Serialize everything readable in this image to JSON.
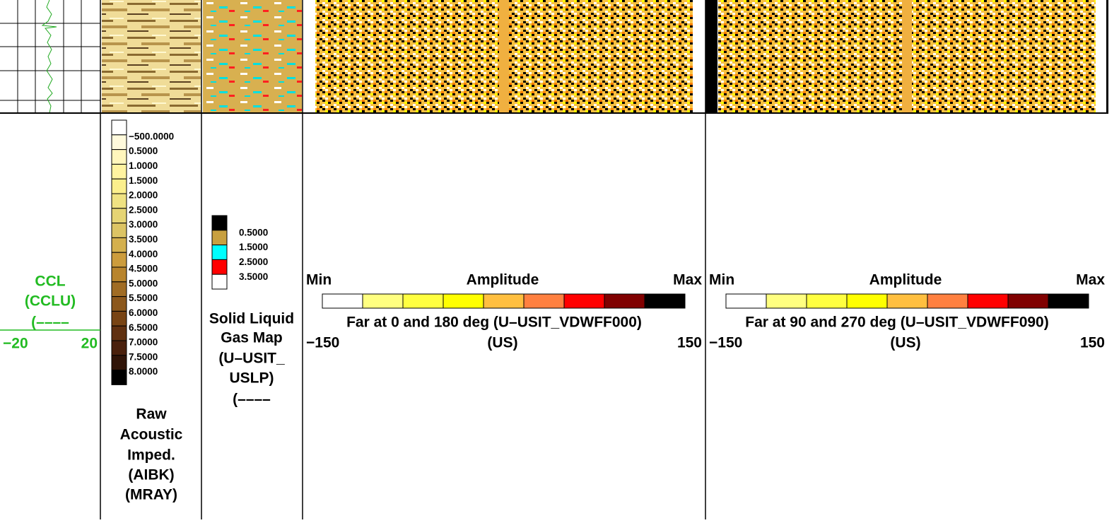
{
  "tracks": [
    {
      "title": [
        "CCL",
        "(CCLU)",
        "(––––"
      ],
      "scale_left": "−20",
      "scale_right": "20"
    },
    {
      "legend": [
        "−500.0000",
        "0.5000",
        "1.0000",
        "1.5000",
        "2.0000",
        "2.5000",
        "3.0000",
        "3.5000",
        "4.0000",
        "4.5000",
        "5.0000",
        "5.5000",
        "6.0000",
        "6.5000",
        "7.0000",
        "7.5000",
        "8.0000"
      ],
      "colors": [
        "#ffffff",
        "#fffadc",
        "#fff6bc",
        "#fff3a0",
        "#fbef8c",
        "#efe282",
        "#e5d474",
        "#dcc464",
        "#d4b04e",
        "#cc9c3c",
        "#b8842c",
        "#a06c24",
        "#8c581c",
        "#784414",
        "#603010",
        "#4a200c",
        "#301408",
        "#000000"
      ],
      "title": [
        "Raw",
        "Acoustic",
        "Imped.",
        "(AIBK)",
        "(MRAY)"
      ]
    },
    {
      "legend": [
        "0.5000",
        "1.5000",
        "2.5000",
        "3.5000"
      ],
      "colors": [
        "#000000",
        "#c8a040",
        "#00ffff",
        "#ff0000",
        "#ffffff"
      ],
      "title": [
        "Solid Liquid",
        "Gas Map",
        "(U–USIT_",
        "USLP)",
        "(––––"
      ]
    },
    {
      "min": "Min",
      "label": "Amplitude",
      "max": "Max",
      "colors": [
        "#ffffff",
        "#ffff80",
        "#ffff40",
        "#ffff00",
        "#ffbf40",
        "#ff8040",
        "#ff0000",
        "#800000",
        "#000000"
      ],
      "title": "Far at 0 and 180 deg (U–USIT_VDWFF000)",
      "unit": "(US)",
      "scale_left": "−150",
      "scale_right": "150"
    },
    {
      "min": "Min",
      "label": "Amplitude",
      "max": "Max",
      "colors": [
        "#ffffff",
        "#ffff80",
        "#ffff40",
        "#ffff00",
        "#ffbf40",
        "#ff8040",
        "#ff0000",
        "#800000",
        "#000000"
      ],
      "title": "Far at 90 and 270 deg (U–USIT_VDWFF090)",
      "unit": "(US)",
      "scale_left": "−150",
      "scale_right": "150"
    }
  ]
}
